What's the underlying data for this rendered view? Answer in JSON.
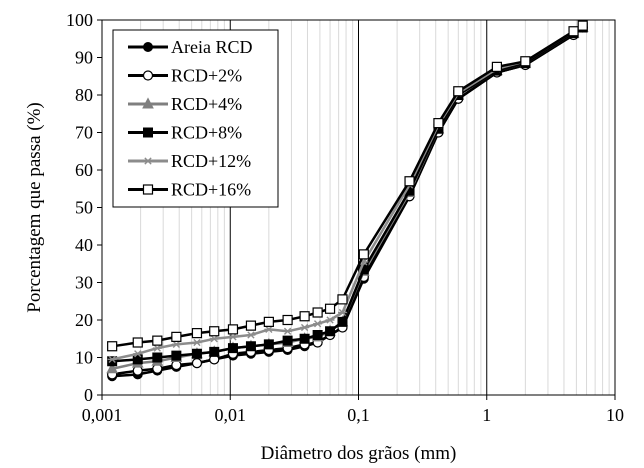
{
  "chart_data": {
    "type": "line",
    "title": "",
    "xlabel": "Diâmetro dos grãos  (mm)",
    "ylabel": "Porcentagem que passa (%)",
    "xscale": "log",
    "xlim": [
      0.001,
      10
    ],
    "ylim": [
      0,
      100
    ],
    "x_tick_labels": [
      "0,001",
      "0,01",
      "0,1",
      "1",
      "10"
    ],
    "y_tick_labels": [
      "0",
      "10",
      "20",
      "30",
      "40",
      "50",
      "60",
      "70",
      "80",
      "90",
      "100"
    ],
    "grid": "major and minor vertical gridlines (log), no horizontal gridlines",
    "legend_position": "top-left",
    "series": [
      {
        "name": "Areia RCD",
        "color": "#000000",
        "marker": "filled-circle",
        "x": [
          0.0012,
          0.0019,
          0.0027,
          0.0038,
          0.0055,
          0.0075,
          0.0105,
          0.0145,
          0.02,
          0.028,
          0.038,
          0.048,
          0.06,
          0.075,
          0.11,
          0.25,
          0.42,
          0.6,
          1.2,
          2.0,
          4.75,
          5.6
        ],
        "y": [
          5,
          5.5,
          6.5,
          7.5,
          8.5,
          9.5,
          10.5,
          11,
          11.5,
          12,
          13,
          14,
          16,
          18,
          31,
          53,
          70,
          79,
          86,
          88,
          96,
          98
        ]
      },
      {
        "name": "RCD+2%",
        "color": "#000000",
        "marker": "open-circle",
        "x": [
          0.0012,
          0.0019,
          0.0027,
          0.0038,
          0.0055,
          0.0075,
          0.0105,
          0.0145,
          0.02,
          0.028,
          0.038,
          0.048,
          0.06,
          0.075,
          0.11,
          0.25,
          0.42,
          0.6,
          1.2,
          2.0,
          4.75,
          5.6
        ],
        "y": [
          5.5,
          6.5,
          7,
          8,
          8.5,
          9.5,
          11,
          11.5,
          12,
          12.5,
          13.5,
          14,
          16,
          18,
          31.5,
          53,
          70,
          79,
          86,
          88,
          96,
          98
        ]
      },
      {
        "name": "RCD+4%",
        "color": "#7f7f7f",
        "marker": "triangle",
        "x": [
          0.0012,
          0.0019,
          0.0027,
          0.0038,
          0.0055,
          0.0075,
          0.0105,
          0.0145,
          0.02,
          0.028,
          0.038,
          0.048,
          0.06,
          0.075,
          0.11,
          0.25,
          0.42,
          0.6,
          1.2,
          2.0,
          4.75,
          5.6
        ],
        "y": [
          7,
          8.5,
          9,
          10,
          11,
          11.5,
          12.5,
          13,
          13.5,
          14,
          15,
          15.5,
          17,
          19.5,
          33,
          54,
          71,
          80,
          86.5,
          88.5,
          96.5,
          98
        ]
      },
      {
        "name": "RCD+8%",
        "color": "#000000",
        "marker": "filled-square",
        "x": [
          0.0012,
          0.0019,
          0.0027,
          0.0038,
          0.0055,
          0.0075,
          0.0105,
          0.0145,
          0.02,
          0.028,
          0.038,
          0.048,
          0.06,
          0.075,
          0.11,
          0.25,
          0.42,
          0.6,
          1.2,
          2.0,
          4.75,
          5.6
        ],
        "y": [
          9,
          9.5,
          10,
          10.5,
          11,
          11.5,
          12.5,
          13,
          13.5,
          14.5,
          15,
          16,
          17,
          19.5,
          33.5,
          54.5,
          71,
          80,
          86.5,
          88.5,
          96.5,
          98
        ]
      },
      {
        "name": "RCD+12%",
        "color": "#8c8c8c",
        "marker": "asterisk",
        "x": [
          0.0012,
          0.0019,
          0.0027,
          0.0038,
          0.0055,
          0.0075,
          0.0105,
          0.0145,
          0.02,
          0.028,
          0.038,
          0.048,
          0.06,
          0.075,
          0.11,
          0.25,
          0.42,
          0.6,
          1.2,
          2.0,
          4.75,
          5.6
        ],
        "y": [
          9.5,
          11,
          12.5,
          13.5,
          14,
          15,
          15.5,
          16,
          17.5,
          17,
          18,
          19,
          20,
          22,
          35.5,
          56,
          72,
          80.5,
          87,
          89,
          97,
          98.5
        ]
      },
      {
        "name": "RCD+16%",
        "color": "#000000",
        "marker": "open-square",
        "x": [
          0.0012,
          0.0019,
          0.0027,
          0.0038,
          0.0055,
          0.0075,
          0.0105,
          0.0145,
          0.02,
          0.028,
          0.038,
          0.048,
          0.06,
          0.075,
          0.11,
          0.25,
          0.42,
          0.6,
          1.2,
          2.0,
          4.75,
          5.6
        ],
        "y": [
          13,
          14,
          14.5,
          15.5,
          16.5,
          17,
          17.5,
          18.5,
          19.5,
          20,
          21,
          22,
          23,
          25.5,
          37.5,
          57,
          72.5,
          81,
          87.5,
          89,
          97,
          98.5
        ]
      }
    ]
  }
}
